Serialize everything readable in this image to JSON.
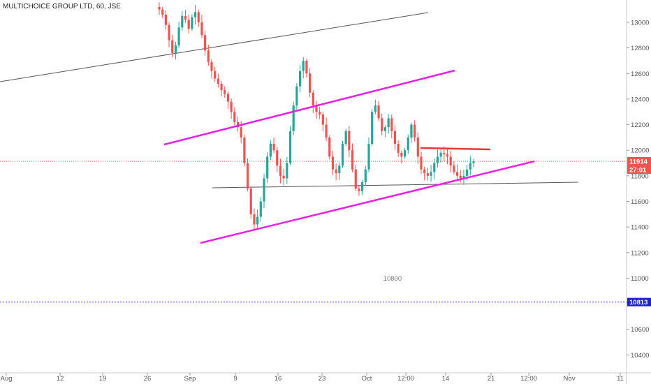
{
  "header": {
    "title": "MULTICHOICE GROUP LTD, 60, JSE"
  },
  "chart_data": {
    "type": "candlestick",
    "title": "MULTICHOICE GROUP LTD, 60, JSE",
    "y_ticks": [
      13000,
      12800,
      12600,
      12400,
      12200,
      12000,
      11800,
      11600,
      11400,
      11200,
      11000,
      10800,
      10600,
      10400
    ],
    "y_tick_labels": [
      "13000",
      "12800",
      "12600",
      "12400",
      "12200",
      "12000",
      "11800",
      "11600",
      "11400",
      "11200",
      "11000",
      "10800",
      "10600",
      "10400"
    ],
    "ylim": [
      10300,
      13150
    ],
    "x_ticks": [
      "Aug",
      "12",
      "19",
      "26",
      "Sep",
      "9",
      "16",
      "23",
      "Oct",
      "12:00",
      "14",
      "21",
      "12:00",
      "Nov",
      "11"
    ],
    "last_price": {
      "value": 11914,
      "label": "11914",
      "color": "#ef5350"
    },
    "countdown": {
      "label": "27:01",
      "color": "#ef5350"
    },
    "level_line": {
      "value": 10813,
      "label": "10813",
      "color": "#1e22c9"
    },
    "annotation": {
      "text": "10800"
    },
    "colors": {
      "up": "#26a69a",
      "down": "#ef5350",
      "channel": "#e91ee9",
      "trend": "#555555",
      "resistance": "#e53935"
    },
    "closes": [
      13100,
      13060,
      12980,
      12860,
      12760,
      12820,
      12960,
      13050,
      13020,
      12950,
      13040,
      13080,
      13000,
      12900,
      12780,
      12690,
      12620,
      12560,
      12520,
      12470,
      12440,
      12380,
      12300,
      12220,
      12180,
      12100,
      11900,
      11700,
      11500,
      11420,
      11480,
      11600,
      11780,
      11950,
      12050,
      12000,
      11880,
      11800,
      11780,
      11900,
      12150,
      12350,
      12500,
      12620,
      12700,
      12600,
      12450,
      12350,
      12300,
      12280,
      12200,
      12100,
      11950,
      11850,
      11820,
      11880,
      12050,
      12150,
      12000,
      11850,
      11700,
      11680,
      11750,
      11850,
      12050,
      12300,
      12350,
      12250,
      12150,
      12180,
      12250,
      12150,
      12050,
      11980,
      11950,
      12000,
      12100,
      12200,
      12100,
      11950,
      11850,
      11820,
      11800,
      11830,
      11900,
      11950,
      11980,
      11970,
      11950,
      11880,
      11830,
      11800,
      11780,
      11800,
      11850,
      11900,
      11914
    ]
  }
}
